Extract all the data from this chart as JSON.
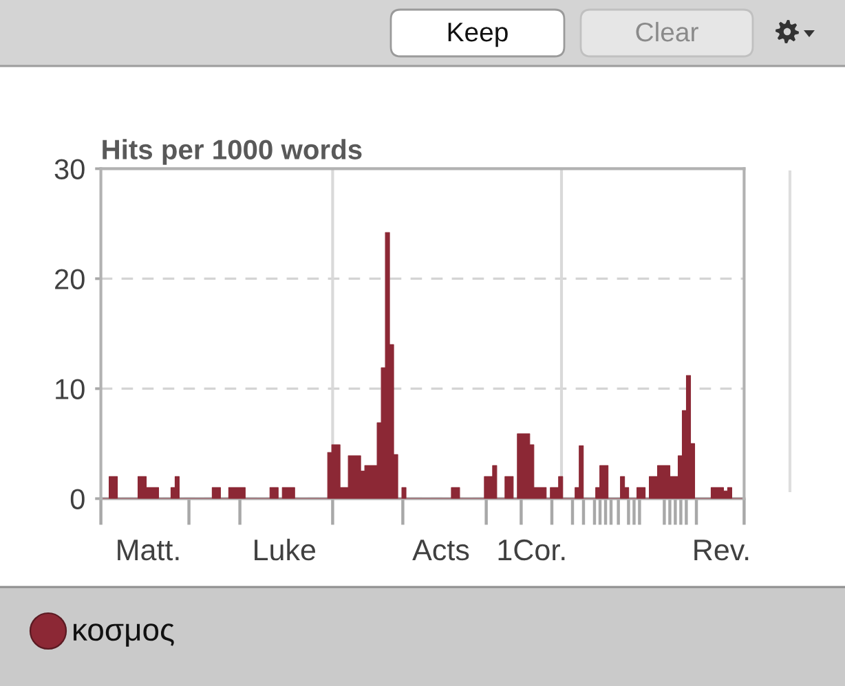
{
  "chart_data": {
    "type": "area",
    "title": "Hits per 1000 words",
    "categories": [
      null,
      null,
      null,
      null,
      null,
      null,
      null,
      null,
      null,
      null,
      null,
      "Matt.",
      null,
      null,
      null,
      null,
      null,
      null,
      null,
      null,
      null,
      null,
      null,
      null,
      null,
      null,
      null,
      null,
      null,
      null,
      null,
      null,
      null,
      null,
      null,
      null,
      null,
      null,
      null,
      null,
      null,
      null,
      null,
      null,
      "Luke",
      null,
      null,
      null,
      null,
      null,
      null,
      null,
      null,
      null,
      null,
      null,
      null,
      null,
      null,
      null,
      null,
      null,
      null,
      null,
      null,
      null,
      null,
      null,
      null,
      null,
      null,
      null,
      null,
      null,
      null,
      null,
      null,
      null,
      null,
      null,
      null,
      null,
      "Acts",
      null,
      null,
      null,
      null,
      null,
      null,
      null,
      null,
      null,
      null,
      null,
      null,
      null,
      null,
      null,
      null,
      null,
      null,
      null,
      null,
      null,
      "1Cor.",
      null,
      null,
      null,
      null,
      null,
      null,
      null,
      null,
      null,
      null,
      null,
      null,
      null,
      null,
      null,
      null,
      null,
      null,
      null,
      null,
      null,
      null,
      null,
      null,
      null,
      null,
      null,
      null,
      null,
      null,
      null,
      null,
      null,
      null,
      null,
      null,
      null,
      null,
      null,
      null,
      null,
      null,
      null,
      null,
      null,
      "Rev.",
      null,
      null,
      null,
      null,
      null
    ],
    "series": [
      {
        "name": "κοσμος",
        "color": "#8c2835",
        "values": [
          0,
          0,
          2,
          2,
          0,
          0,
          0,
          0,
          0,
          2,
          2,
          1,
          1,
          1,
          0,
          0,
          0,
          1,
          2,
          0,
          0,
          0,
          0,
          0,
          0,
          0,
          0,
          1,
          1,
          0,
          0,
          1,
          1,
          1,
          1,
          0,
          0,
          0,
          0,
          0,
          0,
          1,
          1,
          0,
          1,
          1,
          1,
          0,
          0,
          0,
          0,
          0,
          0,
          0,
          0,
          4.2,
          4.9,
          4.9,
          1,
          1,
          3.9,
          3.9,
          3.9,
          2.5,
          3,
          3,
          3,
          6.9,
          11.9,
          24.2,
          14,
          4,
          0,
          1,
          0,
          0,
          0,
          0,
          0,
          0,
          0,
          0,
          0,
          0,
          0,
          1,
          1,
          0,
          0,
          0,
          0,
          0,
          0,
          2,
          2,
          3,
          0,
          0,
          2,
          2,
          0,
          5.9,
          5.9,
          5.9,
          4.9,
          1,
          1,
          1,
          0,
          1,
          1,
          2,
          0,
          0,
          0,
          1,
          4.8,
          0,
          0,
          0,
          1,
          3,
          3,
          0,
          0,
          0,
          2,
          1,
          0,
          0,
          1,
          1,
          0,
          2,
          2,
          3,
          3,
          3,
          2,
          2,
          3.9,
          8,
          11.2,
          5,
          0,
          0,
          0,
          0,
          1,
          1,
          1,
          0.7,
          1,
          0,
          0,
          0
        ]
      }
    ],
    "ylim": [
      0,
      30
    ],
    "yticks": [
      0,
      10,
      20,
      30
    ],
    "grid": "y",
    "legend": "bottom left",
    "annotations": [
      "Keep",
      "Clear"
    ]
  }
}
